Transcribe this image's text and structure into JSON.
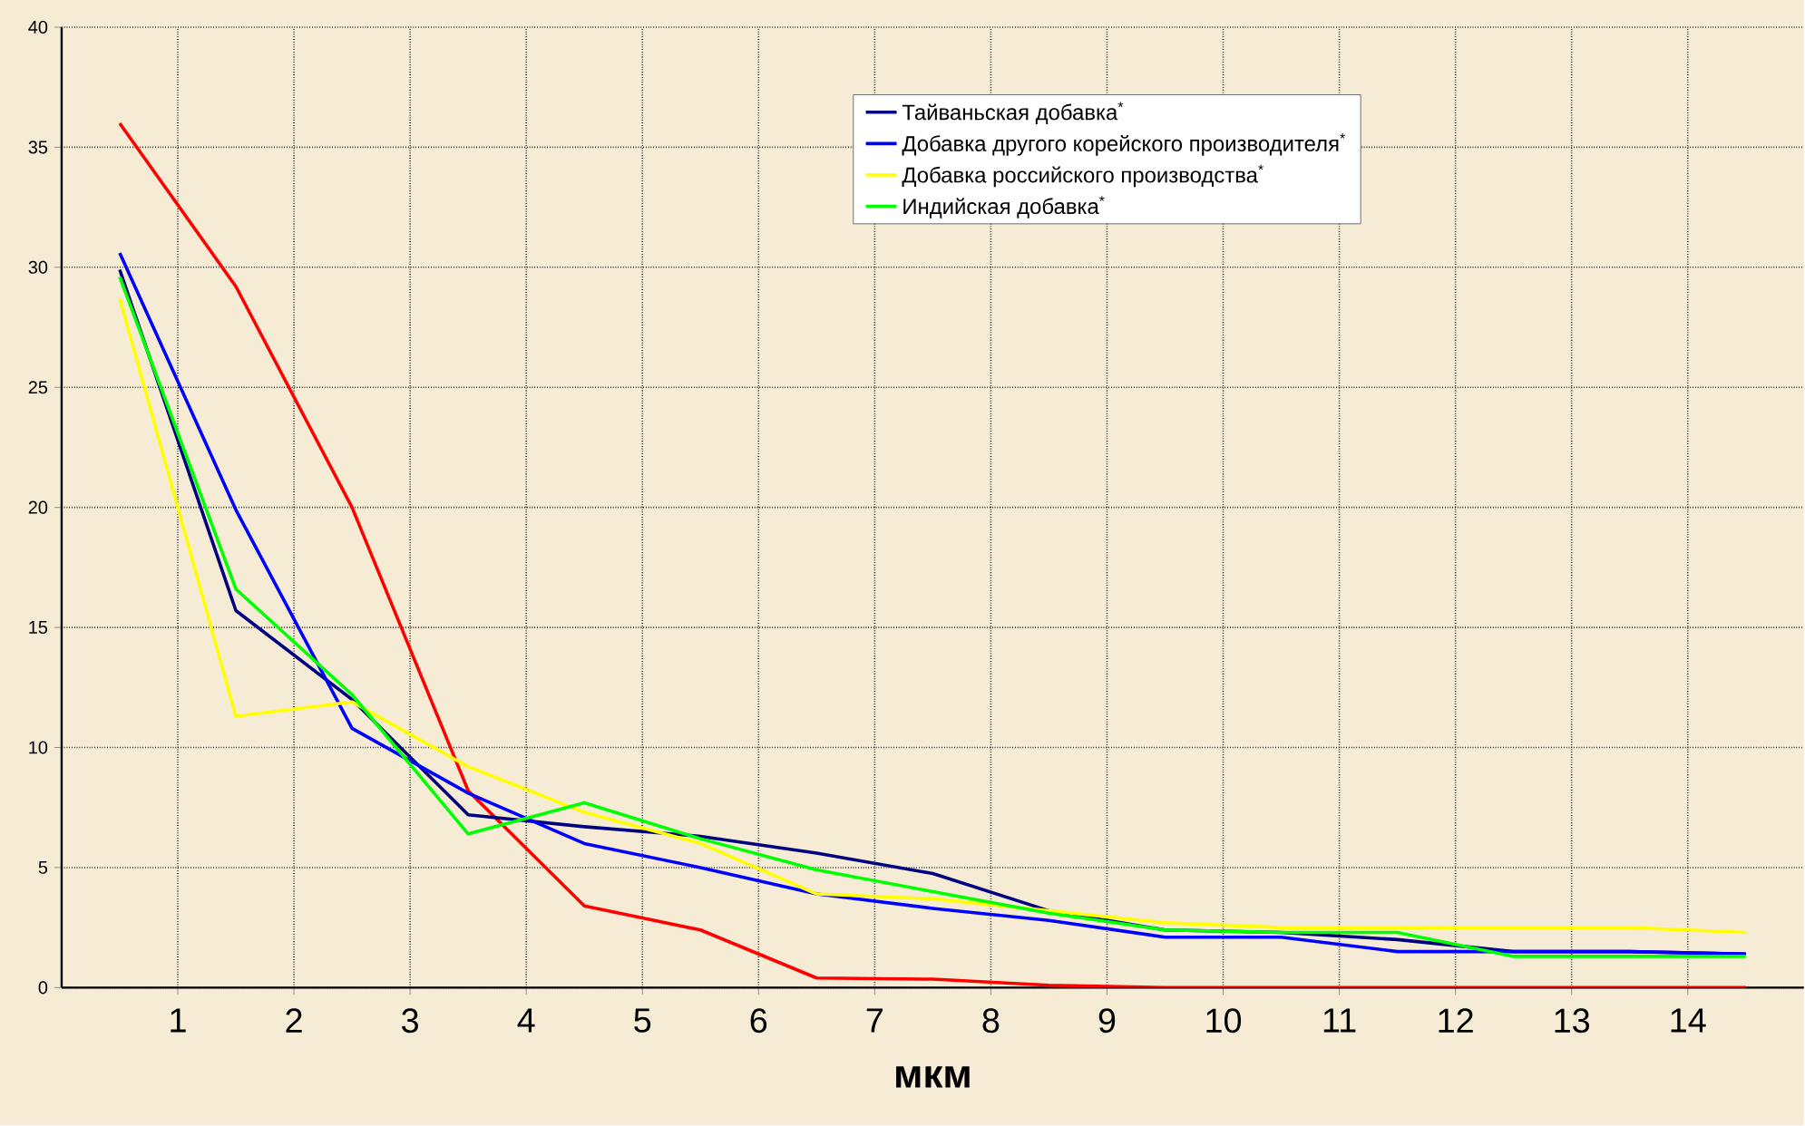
{
  "chart_data": {
    "type": "line",
    "xlabel": "мкм",
    "x": [
      0.5,
      1.5,
      2.5,
      3.5,
      4.5,
      5.5,
      6.5,
      7.5,
      8.5,
      9.5,
      10.5,
      11.5,
      12.5,
      13.5,
      14.5
    ],
    "xlim": [
      0,
      15
    ],
    "xticks": [
      1,
      2,
      3,
      4,
      5,
      6,
      7,
      8,
      9,
      10,
      11,
      12,
      13,
      14
    ],
    "ylim": [
      0,
      40
    ],
    "yticks": [
      0,
      5,
      10,
      15,
      20,
      25,
      30,
      35,
      40
    ],
    "grid": true,
    "legend": "top",
    "marker": "none",
    "line_style": "solid",
    "series": [
      {
        "color": "#ff0000",
        "values": [
          36,
          29.2,
          20,
          8.2,
          3.4,
          2.4,
          0.4,
          0.35,
          0.1,
          0,
          0,
          0,
          0,
          0,
          0
        ]
      },
      {
        "name": "Тайваньская добавка$^{*}$",
        "color": "#000080",
        "values": [
          29.9,
          15.7,
          12,
          7.2,
          6.7,
          6.3,
          5.6,
          4.75,
          3.2,
          2.4,
          2.3,
          2,
          1.5,
          1.5,
          1.4
        ]
      },
      {
        "name": "Добавка другого корейского производителя$^{*}$",
        "color": "#0000ff",
        "values": [
          30.6,
          19.9,
          10.8,
          8.1,
          6,
          5,
          3.9,
          3.3,
          2.8,
          2.1,
          2.1,
          1.5,
          1.5,
          1.5,
          1.4
        ]
      },
      {
        "name": "Добавка российского производства$^{*}$",
        "color": "#ffff00",
        "values": [
          28.7,
          11.3,
          11.9,
          9.2,
          7.3,
          6,
          3.9,
          3.7,
          3.2,
          2.7,
          2.5,
          2.5,
          2.5,
          2.5,
          2.3
        ]
      },
      {
        "name": "Индийская добавка$^{*}$",
        "color": "#00ff00",
        "values": [
          29.6,
          16.6,
          12.2,
          6.4,
          7.7,
          6.2,
          4.9,
          4,
          3.1,
          2.4,
          2.3,
          2.3,
          1.3,
          1.3,
          1.3
        ]
      }
    ]
  }
}
